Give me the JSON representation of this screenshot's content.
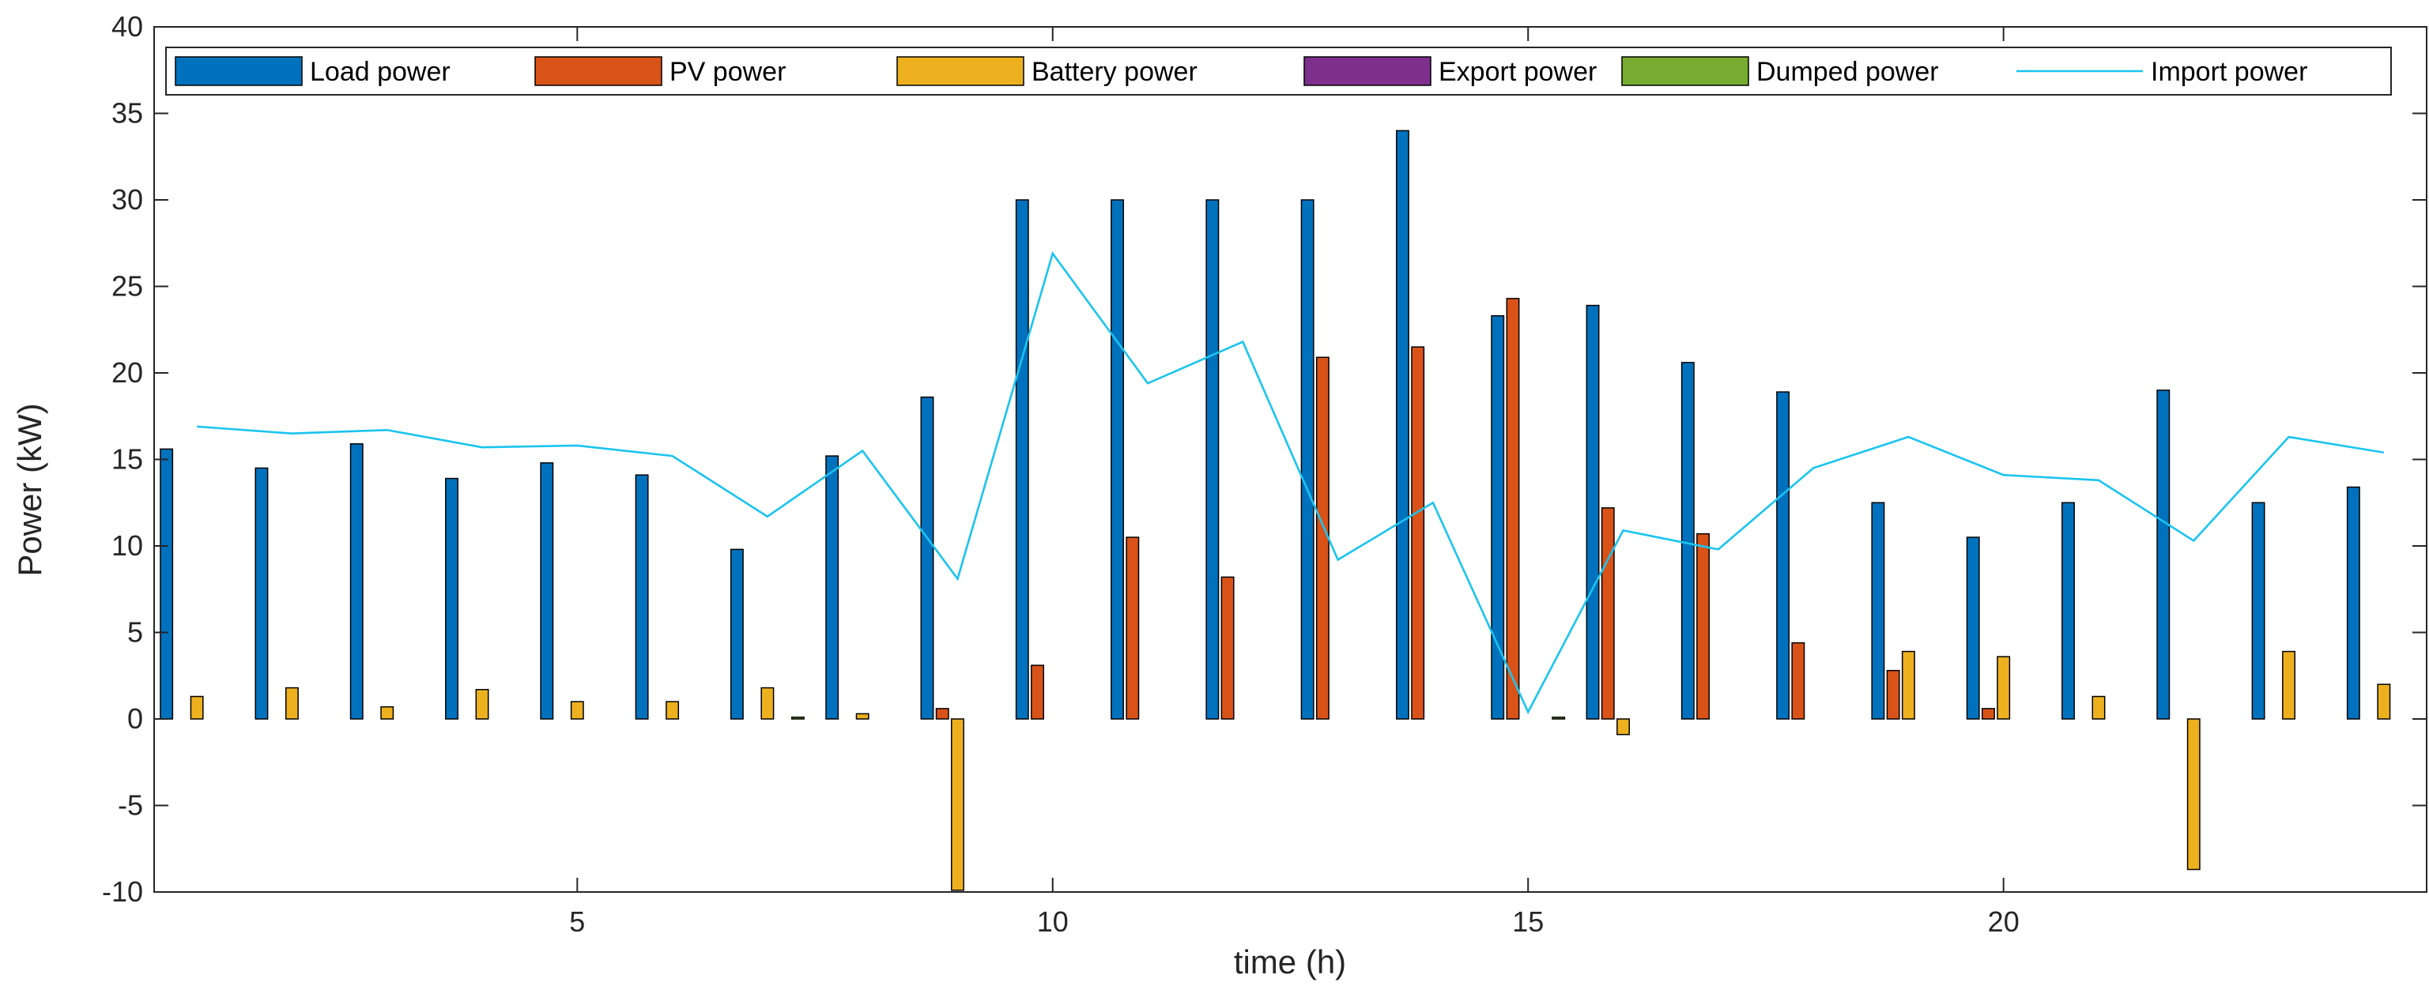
{
  "chart_data": {
    "type": "bar",
    "title": "",
    "xlabel": "time (h)",
    "ylabel": "Power (kW)",
    "xlim": [
      0.55,
      24.45
    ],
    "ylim": [
      -10,
      40
    ],
    "xticks": [
      5,
      10,
      15,
      20
    ],
    "yticks": [
      -10,
      -5,
      0,
      5,
      10,
      15,
      20,
      25,
      30,
      35,
      40
    ],
    "grid": false,
    "legend_position": "top",
    "categories": [
      1,
      2,
      3,
      4,
      5,
      6,
      7,
      8,
      9,
      10,
      11,
      12,
      13,
      14,
      15,
      16,
      17,
      18,
      19,
      20,
      21,
      22,
      23,
      24
    ],
    "series": [
      {
        "name": "Load power",
        "kind": "bar",
        "color": "#0072BD",
        "values": [
          15.6,
          14.5,
          15.9,
          13.9,
          14.8,
          14.1,
          9.8,
          15.2,
          18.6,
          30.0,
          30.0,
          30.0,
          30.0,
          34.0,
          23.3,
          23.9,
          20.6,
          18.9,
          12.5,
          10.5,
          12.5,
          19.0,
          12.5,
          13.4
        ]
      },
      {
        "name": "PV power",
        "kind": "bar",
        "color": "#D95319",
        "values": [
          0,
          0,
          0,
          0,
          0,
          0,
          0,
          0,
          0.6,
          3.1,
          10.5,
          8.2,
          20.9,
          21.5,
          24.3,
          12.2,
          10.7,
          4.4,
          2.8,
          0.6,
          0,
          0,
          0,
          0
        ]
      },
      {
        "name": "Battery power",
        "kind": "bar",
        "color": "#EDB120",
        "values": [
          1.3,
          1.8,
          0.7,
          1.7,
          1.0,
          1.0,
          1.8,
          0.3,
          -9.9,
          0,
          0,
          0,
          0,
          0,
          0,
          -0.9,
          0,
          0,
          3.9,
          3.6,
          1.3,
          -8.7,
          3.9,
          2.0
        ]
      },
      {
        "name": "Export power",
        "kind": "bar",
        "color": "#7E2F8E",
        "values": [
          0,
          0,
          0,
          0,
          0,
          0,
          0,
          0,
          0,
          0,
          0,
          0,
          0,
          0,
          0,
          0,
          0,
          0,
          0,
          0,
          0,
          0,
          0,
          0
        ]
      },
      {
        "name": "Dumped power",
        "kind": "bar",
        "color": "#77AC30",
        "values": [
          0,
          0,
          0,
          0,
          0,
          0,
          0.1,
          0,
          0,
          0,
          0,
          0,
          0,
          0,
          0.1,
          0,
          0,
          0,
          0,
          0,
          0,
          0,
          0,
          0
        ]
      },
      {
        "name": "Import power",
        "kind": "line",
        "color": "#1AC4F0",
        "values": [
          16.9,
          16.5,
          16.7,
          15.7,
          15.8,
          15.2,
          11.7,
          15.5,
          8.1,
          26.9,
          19.4,
          21.8,
          9.2,
          12.5,
          0.4,
          10.9,
          9.8,
          14.5,
          16.3,
          14.1,
          13.8,
          10.3,
          16.3,
          15.4
        ]
      }
    ]
  }
}
